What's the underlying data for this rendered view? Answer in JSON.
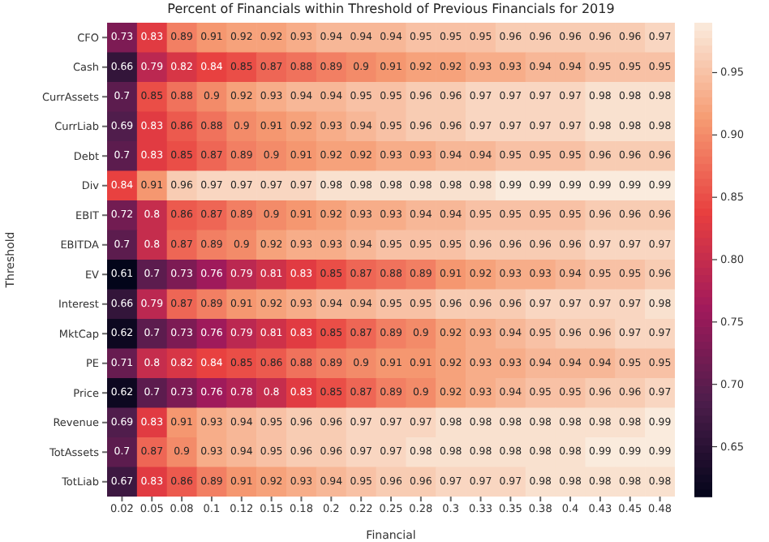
{
  "chart_data": {
    "type": "heatmap",
    "title": "Percent of Financials within Threshold of Previous Financials for 2019",
    "xlabel": "Financial",
    "ylabel": "Threshold",
    "categories": [
      "0.02",
      "0.05",
      "0.08",
      "0.1",
      "0.12",
      "0.15",
      "0.18",
      "0.2",
      "0.22",
      "0.25",
      "0.28",
      "0.3",
      "0.33",
      "0.35",
      "0.38",
      "0.4",
      "0.43",
      "0.45",
      "0.48"
    ],
    "y_categories": [
      "CFO",
      "Cash",
      "CurrAssets",
      "CurrLiab",
      "Debt",
      "Div",
      "EBIT",
      "EBITDA",
      "EV",
      "Interest",
      "MktCap",
      "PE",
      "Price",
      "Revenue",
      "TotAssets",
      "TotLiab"
    ],
    "cells": [
      [
        0.73,
        0.83,
        0.89,
        0.91,
        0.92,
        0.92,
        0.93,
        0.94,
        0.94,
        0.94,
        0.95,
        0.95,
        0.95,
        0.96,
        0.96,
        0.96,
        0.96,
        0.96,
        0.97
      ],
      [
        0.66,
        0.79,
        0.82,
        0.84,
        0.85,
        0.87,
        0.88,
        0.89,
        0.9,
        0.91,
        0.92,
        0.92,
        0.93,
        0.93,
        0.94,
        0.94,
        0.95,
        0.95,
        0.95
      ],
      [
        0.7,
        0.85,
        0.88,
        0.9,
        0.92,
        0.93,
        0.94,
        0.94,
        0.95,
        0.95,
        0.96,
        0.96,
        0.97,
        0.97,
        0.97,
        0.97,
        0.98,
        0.98,
        0.98
      ],
      [
        0.69,
        0.83,
        0.86,
        0.88,
        0.9,
        0.91,
        0.92,
        0.93,
        0.94,
        0.95,
        0.96,
        0.96,
        0.97,
        0.97,
        0.97,
        0.97,
        0.98,
        0.98,
        0.98
      ],
      [
        0.7,
        0.83,
        0.85,
        0.87,
        0.89,
        0.9,
        0.91,
        0.92,
        0.92,
        0.93,
        0.93,
        0.94,
        0.94,
        0.95,
        0.95,
        0.95,
        0.96,
        0.96,
        0.96
      ],
      [
        0.84,
        0.91,
        0.96,
        0.97,
        0.97,
        0.97,
        0.97,
        0.98,
        0.98,
        0.98,
        0.98,
        0.98,
        0.98,
        0.99,
        0.99,
        0.99,
        0.99,
        0.99,
        0.99
      ],
      [
        0.72,
        0.8,
        0.86,
        0.87,
        0.89,
        0.9,
        0.91,
        0.92,
        0.93,
        0.93,
        0.94,
        0.94,
        0.95,
        0.95,
        0.95,
        0.95,
        0.96,
        0.96,
        0.96
      ],
      [
        0.7,
        0.8,
        0.87,
        0.89,
        0.9,
        0.92,
        0.93,
        0.93,
        0.94,
        0.95,
        0.95,
        0.95,
        0.96,
        0.96,
        0.96,
        0.96,
        0.97,
        0.97,
        0.97
      ],
      [
        0.61,
        0.7,
        0.73,
        0.76,
        0.79,
        0.81,
        0.83,
        0.85,
        0.87,
        0.88,
        0.89,
        0.91,
        0.92,
        0.93,
        0.93,
        0.94,
        0.95,
        0.95,
        0.96
      ],
      [
        0.66,
        0.79,
        0.87,
        0.89,
        0.91,
        0.92,
        0.93,
        0.94,
        0.94,
        0.95,
        0.95,
        0.96,
        0.96,
        0.96,
        0.97,
        0.97,
        0.97,
        0.97,
        0.98
      ],
      [
        0.62,
        0.7,
        0.73,
        0.76,
        0.79,
        0.81,
        0.83,
        0.85,
        0.87,
        0.89,
        0.9,
        0.92,
        0.93,
        0.94,
        0.95,
        0.96,
        0.96,
        0.97,
        0.97
      ],
      [
        0.71,
        0.8,
        0.82,
        0.84,
        0.85,
        0.86,
        0.88,
        0.89,
        0.9,
        0.91,
        0.91,
        0.92,
        0.93,
        0.93,
        0.94,
        0.94,
        0.94,
        0.95,
        0.95
      ],
      [
        0.62,
        0.7,
        0.73,
        0.76,
        0.78,
        0.8,
        0.83,
        0.85,
        0.87,
        0.89,
        0.9,
        0.92,
        0.93,
        0.94,
        0.95,
        0.95,
        0.96,
        0.96,
        0.97
      ],
      [
        0.69,
        0.83,
        0.91,
        0.93,
        0.94,
        0.95,
        0.96,
        0.96,
        0.97,
        0.97,
        0.97,
        0.98,
        0.98,
        0.98,
        0.98,
        0.98,
        0.98,
        0.98,
        0.99
      ],
      [
        0.7,
        0.87,
        0.9,
        0.93,
        0.94,
        0.95,
        0.96,
        0.96,
        0.97,
        0.97,
        0.98,
        0.98,
        0.98,
        0.98,
        0.98,
        0.98,
        0.99,
        0.99,
        0.99
      ],
      [
        0.67,
        0.83,
        0.86,
        0.89,
        0.91,
        0.92,
        0.93,
        0.94,
        0.95,
        0.96,
        0.96,
        0.97,
        0.97,
        0.97,
        0.98,
        0.98,
        0.98,
        0.98,
        0.98
      ]
    ],
    "clim": [
      0.61,
      0.99
    ],
    "cticks": [
      0.65,
      {
        "value": 0.7,
        "label": "0.70"
      },
      0.75,
      {
        "value": 0.8,
        "label": "0.80"
      },
      0.85,
      {
        "value": 0.9,
        "label": "0.90"
      },
      0.95
    ],
    "data_labels": true
  }
}
